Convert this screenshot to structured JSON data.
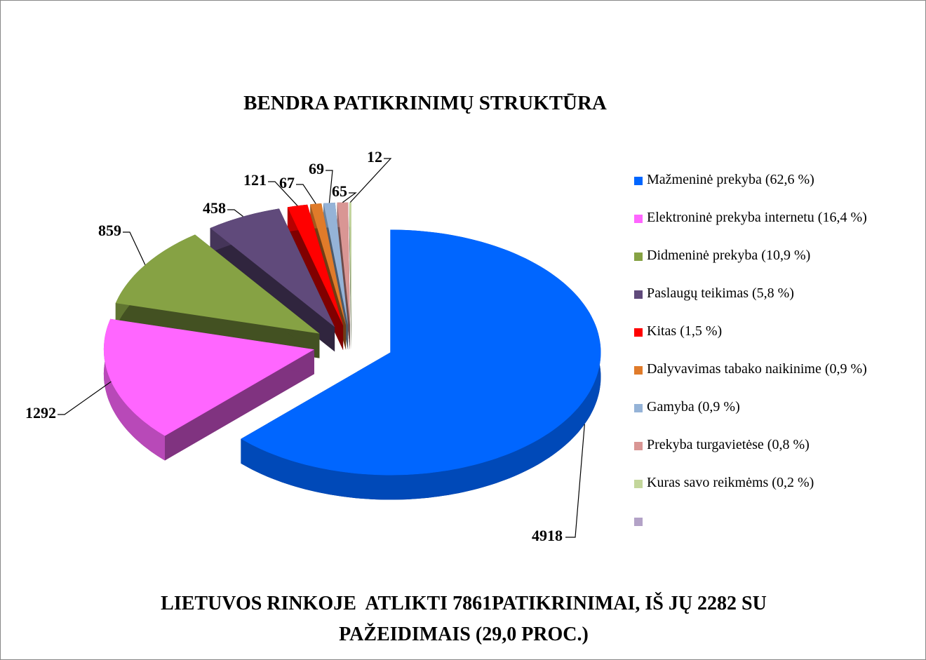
{
  "chart_data": {
    "type": "pie",
    "title": "BENDRA PATIKRINIMŲ STRUKTŪRA",
    "note": "LIETUVOS RINKOJE  ATLIKTI 7861PATIKRINIMAI, IŠ JŲ 2282 SU PAŽEIDIMAIS (29,0 PROC.)",
    "categories": [
      "Mažmeninė prekyba (62,6 %)",
      "Elektroninė prekyba internetu (16,4 %)",
      "Didmeninė prekyba (10,9 %)",
      "Paslaugų teikimas (5,8 %)",
      "Kitas (1,5 %)",
      "Dalyvavimas tabako naikinime (0,9 %)",
      "Gamyba (0,9 %)",
      "Prekyba turgavietėse (0,8 %)",
      "Kuras savo reikmėms (0,2 %)",
      null
    ],
    "values": [
      4918,
      1292,
      859,
      458,
      121,
      67,
      69,
      65,
      12,
      null
    ],
    "colors": [
      "#0066ff",
      "#ff66ff",
      "#86a244",
      "#604a7b",
      "#ff0000",
      "#e07b2a",
      "#95b3d7",
      "#d99694",
      "#c3d69b",
      "#b3a2c7"
    ],
    "legend": "right"
  }
}
